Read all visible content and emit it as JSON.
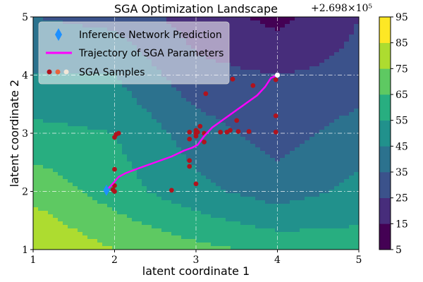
{
  "chart_data": {
    "type": "contour",
    "title": "SGA Optimization Landscape",
    "xlabel": "latent coordinate 1",
    "ylabel": "latent coordinate 2",
    "xlim": [
      1,
      5
    ],
    "ylim": [
      1,
      5
    ],
    "xticks": [
      "1",
      "2",
      "3",
      "4",
      "5"
    ],
    "yticks": [
      "1",
      "2",
      "3",
      "4",
      "5"
    ],
    "offset_label": "+2.698×10⁵",
    "colorbar": {
      "min": 5,
      "max": 95,
      "ticks": [
        "5",
        "15",
        "25",
        "35",
        "45",
        "55",
        "65",
        "75",
        "85",
        "95"
      ],
      "colors": [
        "#440154",
        "#472d7b",
        "#3b528b",
        "#2c728e",
        "#21918c",
        "#28ae80",
        "#5ec962",
        "#addc30",
        "#fde725"
      ]
    },
    "field": {
      "xs": [
        1,
        2,
        3,
        4,
        5
      ],
      "ys": [
        1,
        2,
        3,
        4,
        5
      ],
      "z": [
        [
          85,
          75,
          68,
          62,
          60
        ],
        [
          72,
          60,
          48,
          40,
          48
        ],
        [
          58,
          55,
          40,
          30,
          40
        ],
        [
          45,
          45,
          28,
          25,
          28
        ],
        [
          35,
          32,
          20,
          12,
          25
        ]
      ]
    },
    "legend": [
      {
        "label": "Inference Network Prediction",
        "marker": "diamond"
      },
      {
        "label": "Trajectory of SGA Parameters",
        "marker": "line"
      },
      {
        "label": "SGA Samples",
        "marker": "dots"
      }
    ],
    "prediction": {
      "x": 1.9,
      "y": 2.02
    },
    "final_point": {
      "x": 4.0,
      "y": 4.0
    },
    "trajectory": [
      [
        1.9,
        2.02
      ],
      [
        1.97,
        2.12
      ],
      [
        2.05,
        2.25
      ],
      [
        2.13,
        2.31
      ],
      [
        2.3,
        2.4
      ],
      [
        2.5,
        2.5
      ],
      [
        2.7,
        2.6
      ],
      [
        2.85,
        2.7
      ],
      [
        2.95,
        2.75
      ],
      [
        3.02,
        2.8
      ],
      [
        3.1,
        2.95
      ],
      [
        3.2,
        3.1
      ],
      [
        3.3,
        3.2
      ],
      [
        3.45,
        3.35
      ],
      [
        3.6,
        3.5
      ],
      [
        3.75,
        3.65
      ],
      [
        3.85,
        3.8
      ],
      [
        3.92,
        3.95
      ],
      [
        4.0,
        4.0
      ]
    ],
    "samples": [
      [
        2.0,
        2.0
      ],
      [
        2.0,
        2.1
      ],
      [
        2.0,
        2.38
      ],
      [
        1.98,
        2.03
      ],
      [
        2.0,
        2.93
      ],
      [
        2.02,
        2.98
      ],
      [
        2.05,
        3.0
      ],
      [
        2.7,
        2.02
      ],
      [
        2.92,
        2.43
      ],
      [
        2.92,
        2.53
      ],
      [
        2.92,
        2.9
      ],
      [
        2.92,
        3.02
      ],
      [
        3.0,
        2.13
      ],
      [
        3.0,
        2.95
      ],
      [
        3.0,
        3.0
      ],
      [
        3.0,
        3.05
      ],
      [
        3.02,
        3.02
      ],
      [
        3.05,
        3.12
      ],
      [
        3.1,
        2.85
      ],
      [
        3.1,
        3.0
      ],
      [
        3.12,
        3.68
      ],
      [
        3.3,
        3.02
      ],
      [
        3.38,
        3.02
      ],
      [
        3.42,
        3.05
      ],
      [
        3.45,
        3.93
      ],
      [
        3.5,
        3.22
      ],
      [
        3.52,
        3.03
      ],
      [
        3.65,
        3.03
      ],
      [
        3.7,
        3.82
      ],
      [
        3.98,
        3.02
      ],
      [
        3.98,
        3.3
      ],
      [
        3.98,
        3.92
      ]
    ]
  }
}
